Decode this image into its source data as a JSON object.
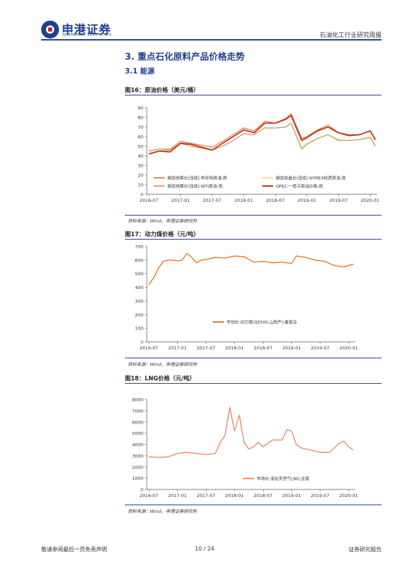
{
  "header": {
    "logo_cn": "申港证券",
    "logo_en": "SHENGANG SECURITIES",
    "report_title": "石油化工行业研究周报"
  },
  "section": {
    "title": "3. 重点石化原料产品价格走势",
    "subtitle": "3.1 能源"
  },
  "colors": {
    "brand": "#1f3f8f",
    "brent": "#e8864a",
    "nymex": "#f0e08a",
    "wti": "#c8a27c",
    "opec": "#b8321c",
    "coal": "#e0782a",
    "lng": "#ea8a6a"
  },
  "figures": [
    {
      "title": "图16：原油价格（美元/桶）",
      "source": "资料来源：Wind，申港证券研究所",
      "chart_data": {
        "type": "line",
        "ylim": [
          0,
          90
        ],
        "yticks": [
          "0",
          "10",
          "20",
          "30",
          "40",
          "50",
          "60",
          "70",
          "80",
          "90"
        ],
        "xticks": [
          "2016-07",
          "2017-01",
          "2017-07",
          "2018-01",
          "2018-07",
          "2019-01",
          "2019-07",
          "2020-01"
        ],
        "x": [
          "2016-07",
          "2016-09",
          "2016-11",
          "2017-01",
          "2017-03",
          "2017-05",
          "2017-07",
          "2017-09",
          "2017-11",
          "2018-01",
          "2018-03",
          "2018-05",
          "2018-07",
          "2018-09",
          "2018-10",
          "2018-12",
          "2019-01",
          "2019-03",
          "2019-05",
          "2019-07",
          "2019-09",
          "2019-11",
          "2020-01",
          "2020-02"
        ],
        "legend": [
          "期货结算价(连续):布伦特原油:周",
          "期货收盘价(连续):NYMEX轻质原油:周",
          "期货结算价(连续):WTI原油:周",
          "OPEC:一揽子原油价格:周"
        ],
        "series": [
          {
            "name": "期货结算价(连续):布伦特原油:周",
            "values": [
              45,
              47,
              47,
              55,
              53,
              51,
              49,
              55,
              62,
              69,
              66,
              76,
              74,
              79,
              84,
              58,
              60,
              67,
              72,
              64,
              62,
              62,
              66,
              56
            ]
          },
          {
            "name": "期货收盘价(连续):NYMEX轻质原油:周",
            "values": [
              42,
              45,
              46,
              53,
              50,
              48,
              46,
              50,
              56,
              63,
              62,
              69,
              69,
              70,
              74,
              48,
              53,
              58,
              62,
              57,
              56,
              57,
              60,
              51
            ]
          },
          {
            "name": "期货结算价(连续):WTI原油:周",
            "values": [
              42,
              45,
              46,
              53,
              50,
              48,
              46,
              50,
              56,
              63,
              62,
              69,
              69,
              70,
              74,
              47,
              52,
              58,
              62,
              56,
              56,
              57,
              59,
              50
            ]
          },
          {
            "name": "OPEC:一揽子原油价格:周",
            "values": [
              42,
              45,
              44,
              53,
              52,
              49,
              46,
              53,
              60,
              67,
              64,
              74,
              74,
              78,
              82,
              56,
              59,
              66,
              70,
              64,
              61,
              62,
              66,
              57
            ]
          }
        ]
      }
    },
    {
      "title": "图17：动力煤价格（元/吨）",
      "source": "资料来源：Wind，申港证券研究所",
      "chart_data": {
        "type": "line",
        "ylim": [
          0,
          700
        ],
        "yticks": [
          "0",
          "100",
          "200",
          "300",
          "400",
          "500",
          "600",
          "700"
        ],
        "xticks": [
          "2016-07",
          "2017-01",
          "2017-07",
          "2018-01",
          "2018-07",
          "2019-01",
          "2019-07",
          "2020-01"
        ],
        "x": [
          "2016-07",
          "2016-08",
          "2016-09",
          "2016-10",
          "2016-11",
          "2016-12",
          "2017-01",
          "2017-02",
          "2017-03",
          "2017-04",
          "2017-05",
          "2017-06",
          "2017-07",
          "2017-09",
          "2017-11",
          "2018-01",
          "2018-03",
          "2018-05",
          "2018-07",
          "2018-09",
          "2018-11",
          "2019-01",
          "2019-02",
          "2019-04",
          "2019-06",
          "2019-08",
          "2019-10",
          "2019-12",
          "2020-02"
        ],
        "legend": [
          "市场价:动力煤(Q5500,山西产):秦皇岛"
        ],
        "series": [
          {
            "name": "市场价:动力煤(Q5500,山西产):秦皇岛",
            "values": [
              420,
              470,
              540,
              590,
              600,
              600,
              595,
              600,
              650,
              620,
              580,
              600,
              605,
              620,
              615,
              630,
              625,
              585,
              590,
              580,
              585,
              575,
              630,
              620,
              600,
              590,
              560,
              550,
              570
            ]
          }
        ]
      }
    },
    {
      "title": "图18：LNG价格（元/吨）",
      "source": "资料来源：Wind，申港证券研究所",
      "chart_data": {
        "type": "line",
        "ylim": [
          0,
          8000
        ],
        "yticks": [
          "0",
          "1000",
          "2000",
          "3000",
          "4000",
          "5000",
          "6000",
          "7000",
          "8000"
        ],
        "xticks": [
          "2016-07",
          "2017-01",
          "2017-07",
          "2018-01",
          "2018-07",
          "2019-01",
          "2019-07",
          "2020-01"
        ],
        "x": [
          "2016-07",
          "2016-09",
          "2016-11",
          "2017-01",
          "2017-03",
          "2017-05",
          "2017-07",
          "2017-09",
          "2017-10",
          "2017-11",
          "2017-12",
          "2018-01",
          "2018-02",
          "2018-03",
          "2018-04",
          "2018-05",
          "2018-06",
          "2018-07",
          "2018-09",
          "2018-11",
          "2018-12",
          "2019-01",
          "2019-02",
          "2019-03",
          "2019-05",
          "2019-07",
          "2019-09",
          "2019-11",
          "2019-12",
          "2020-01",
          "2020-02"
        ],
        "legend": [
          "市场价:液化天然气LNG:全国"
        ],
        "series": [
          {
            "name": "市场价:液化天然气LNG:全国",
            "values": [
              2900,
              2850,
              2900,
              3200,
              3300,
              3200,
              3100,
              3200,
              4200,
              4800,
              7300,
              5200,
              6600,
              4200,
              3600,
              3800,
              4200,
              3800,
              4400,
              4400,
              5300,
              5200,
              4000,
              3700,
              3500,
              3300,
              3300,
              4100,
              4300,
              3800,
              3500
            ]
          }
        ]
      }
    }
  ],
  "footer": {
    "left": "敬请参阅最后一页免责声明",
    "page": "10 / 24",
    "right": "证券研究报告"
  }
}
